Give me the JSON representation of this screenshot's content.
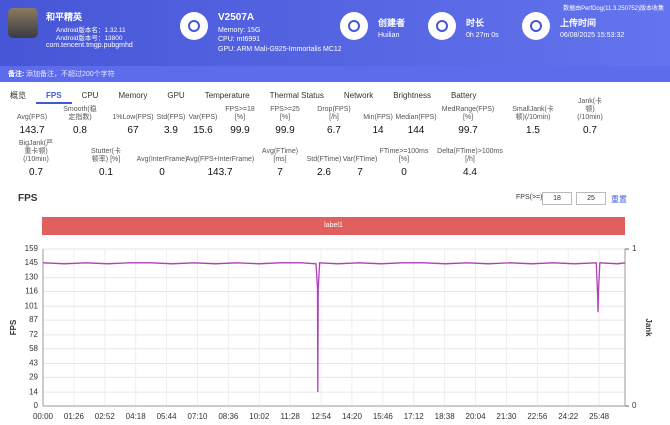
{
  "header": {
    "app": {
      "name": "和平精英",
      "version_name": "Android版本名：1.32.11",
      "version_code": "Android版本号：13800",
      "package": "com.tencent.tmgp.pubgmhd"
    },
    "device": {
      "name": "V2507A",
      "memory": "Memory: 15G",
      "cpu": "CPU: mt6991",
      "gpu": "GPU: ARM Mali-G925-Immortalis MC12"
    },
    "creator": {
      "label": "创建者",
      "value": "Huilian"
    },
    "duration": {
      "label": "时长",
      "value": "0h 27m 0s"
    },
    "upload": {
      "label": "上传时间",
      "value": "06/08/2025 15:53:32"
    },
    "source": "数据由PerfDog(11.3.250752)版本收集"
  },
  "note": {
    "label": "备注:",
    "placeholder": "添加备注，不超过200个字符"
  },
  "tabs": [
    "概览",
    "FPS",
    "CPU",
    "Memory",
    "GPU",
    "Temperature",
    "Thermal Status",
    "Network",
    "Brightness",
    "Battery"
  ],
  "stats": [
    [
      {
        "label": "Avg(FPS)",
        "value": 143.7
      },
      {
        "label": "Smooth(稳定指数)",
        "value": 0.8
      },
      {
        "label": "1%Low(FPS)",
        "value": 67
      },
      {
        "label": "Std(FPS)",
        "value": 3.9
      },
      {
        "label": "Var(FPS)",
        "value": 15.6
      },
      {
        "label": "FPS>=18 [%]",
        "value": 99.9
      },
      {
        "label": "FPS>=25 [%]",
        "value": 99.9
      },
      {
        "label": "Drop(FPS) [/h]",
        "value": 6.7
      },
      {
        "label": "Min(FPS)",
        "value": 14
      },
      {
        "label": "Median(FPS)",
        "value": 144
      },
      {
        "label": "MedRange(FPS)[%]",
        "value": 99.7
      },
      {
        "label": "SmallJank(卡顿)(/10min)",
        "value": 1.5
      },
      {
        "label": "Jank(卡顿)(/10min)",
        "value": 0.7
      }
    ],
    [
      {
        "label": "BigJank(严重卡顿)(/10min)",
        "value": 0.7
      },
      {
        "label": "Stutter(卡顿率) [%]",
        "value": 0.1
      },
      {
        "label": "Avg(InterFrame)",
        "value": 0
      },
      {
        "label": "Avg(FPS+InterFrame)",
        "value": 143.7
      },
      {
        "label": "Avg(FTime) [ms]",
        "value": 7
      },
      {
        "label": "Std(FTime)",
        "value": 2.6
      },
      {
        "label": "Var(FTime)",
        "value": 7
      },
      {
        "label": "FTime>=100ms [%]",
        "value": 0
      },
      {
        "label": "Delta(FTime)>100ms [/h]",
        "value": 4.4
      }
    ]
  ],
  "filter": {
    "label": "FPS(>=)",
    "values": [
      18,
      25
    ],
    "reset": "重置"
  },
  "chart_data": {
    "type": "line",
    "title": "FPS",
    "annotation": "label1",
    "ylabel": "FPS",
    "y2label": "Jank",
    "x": [
      0,
      60,
      120,
      180,
      240,
      300,
      360,
      420,
      480,
      540,
      600,
      660,
      720,
      760,
      764,
      765,
      766,
      770,
      820,
      880,
      940,
      1000,
      1060,
      1120,
      1180,
      1240,
      1300,
      1360,
      1420,
      1480,
      1540,
      1544,
      1545,
      1546,
      1550,
      1600,
      1620
    ],
    "series": [
      {
        "name": "FPS",
        "color": "#b040b8",
        "values": [
          145,
          144,
          145,
          144,
          145,
          145,
          144,
          145,
          144,
          145,
          144,
          145,
          145,
          144,
          120,
          14,
          118,
          145,
          144,
          145,
          144,
          145,
          145,
          144,
          145,
          144,
          145,
          144,
          145,
          144,
          145,
          110,
          95,
          115,
          145,
          144,
          145
        ]
      }
    ],
    "xlim": [
      0,
      1620
    ],
    "xticks": [
      {
        "value": 0,
        "label": "00:00"
      },
      {
        "value": 86,
        "label": "01:26"
      },
      {
        "value": 172,
        "label": "02:52"
      },
      {
        "value": 258,
        "label": "04:18"
      },
      {
        "value": 344,
        "label": "05:44"
      },
      {
        "value": 430,
        "label": "07:10"
      },
      {
        "value": 516,
        "label": "08:36"
      },
      {
        "value": 602,
        "label": "10:02"
      },
      {
        "value": 688,
        "label": "11:28"
      },
      {
        "value": 774,
        "label": "12:54"
      },
      {
        "value": 860,
        "label": "14:20"
      },
      {
        "value": 946,
        "label": "15:46"
      },
      {
        "value": 1032,
        "label": "17:12"
      },
      {
        "value": 1118,
        "label": "18:38"
      },
      {
        "value": 1204,
        "label": "20:04"
      },
      {
        "value": 1290,
        "label": "21:30"
      },
      {
        "value": 1376,
        "label": "22:56"
      },
      {
        "value": 1462,
        "label": "24:22"
      },
      {
        "value": 1548,
        "label": "25:48"
      }
    ],
    "ylim": [
      0,
      159
    ],
    "yticks": [
      0,
      14,
      29,
      43,
      58,
      72,
      87,
      101,
      116,
      130,
      145,
      159
    ],
    "y2lim": [
      0,
      1
    ],
    "y2ticks": [
      0,
      1
    ],
    "grid": true
  }
}
